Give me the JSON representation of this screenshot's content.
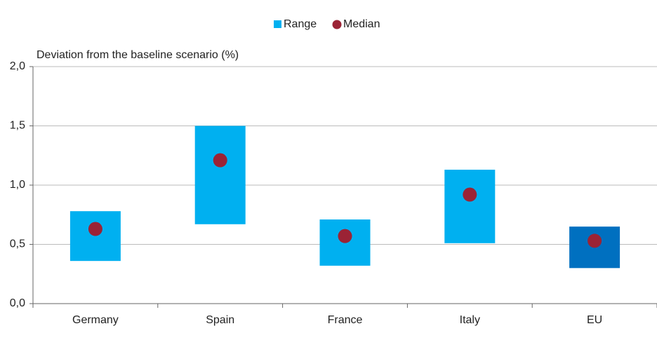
{
  "chart_data": {
    "type": "range-median",
    "y_label": "Deviation from the baseline scenario (%)",
    "categories": [
      "Germany",
      "Spain",
      "France",
      "Italy",
      "EU"
    ],
    "series": [
      {
        "name": "Range",
        "color": "#00b0f0",
        "colors": [
          "#00b0f0",
          "#00b0f0",
          "#00b0f0",
          "#00b0f0",
          "#0070c0"
        ],
        "low": [
          0.36,
          0.67,
          0.32,
          0.51,
          0.3
        ],
        "high": [
          0.78,
          1.5,
          0.71,
          1.13,
          0.65
        ]
      },
      {
        "name": "Median",
        "color": "#9b2335",
        "values": [
          0.63,
          1.21,
          0.57,
          0.92,
          0.53
        ]
      }
    ],
    "ylim": [
      0,
      2
    ],
    "yticks": [
      {
        "value": 0,
        "label": "0,0"
      },
      {
        "value": 0.5,
        "label": "0,5"
      },
      {
        "value": 1,
        "label": "1,0"
      },
      {
        "value": 1.5,
        "label": "1,5"
      },
      {
        "value": 2,
        "label": "2,0"
      }
    ],
    "grid": true,
    "legend": "top"
  }
}
